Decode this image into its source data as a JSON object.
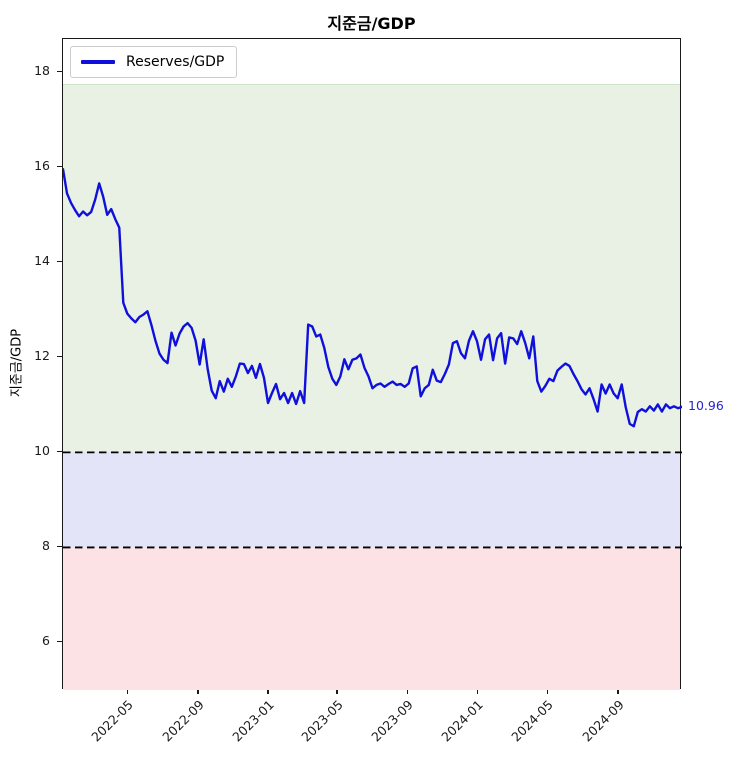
{
  "figure": {
    "background": "#ffffff"
  },
  "chart_data": {
    "type": "line",
    "title": "지준금/GDP",
    "ylabel": "지준금/GDP",
    "xlabel": "",
    "grid": false,
    "legend": {
      "label": "Reserves/GDP",
      "position": "upper left"
    },
    "ylim": [
      5.0,
      18.7
    ],
    "yticks": [
      6,
      8,
      10,
      12,
      14,
      16,
      18
    ],
    "xticklabels": [
      "2022-05",
      "2022-09",
      "2023-01",
      "2023-05",
      "2023-09",
      "2024-01",
      "2024-05",
      "2024-09"
    ],
    "bands": [
      {
        "name": "upper-green-zone",
        "from": 10,
        "to": 17.75,
        "color": "#e8f1e4",
        "edge_color": "#d2e3cc"
      },
      {
        "name": "mid-lavender-zone",
        "from": 8,
        "to": 10,
        "color": "#e4e4f8"
      },
      {
        "name": "lower-pink-zone",
        "from": 5.0,
        "to": 8,
        "color": "#fce2e5"
      }
    ],
    "hlines": [
      {
        "y": 10,
        "style": "dashed",
        "color": "#000000"
      },
      {
        "y": 8,
        "style": "dashed",
        "color": "#000000"
      }
    ],
    "series": [
      {
        "name": "Reserves/GDP",
        "color": "#1010dc",
        "x_start_date": "2022-01-07",
        "x_freq_days": 7,
        "values": [
          15.96,
          15.45,
          15.25,
          15.1,
          14.97,
          15.07,
          14.99,
          15.06,
          15.32,
          15.66,
          15.38,
          15.0,
          15.12,
          14.91,
          14.73,
          13.15,
          12.92,
          12.82,
          12.74,
          12.85,
          12.9,
          12.97,
          12.68,
          12.35,
          12.08,
          11.95,
          11.88,
          12.52,
          12.25,
          12.5,
          12.65,
          12.72,
          12.62,
          12.35,
          11.85,
          12.38,
          11.75,
          11.3,
          11.14,
          11.5,
          11.28,
          11.55,
          11.38,
          11.6,
          11.87,
          11.86,
          11.67,
          11.82,
          11.57,
          11.86,
          11.57,
          11.04,
          11.25,
          11.44,
          11.12,
          11.25,
          11.04,
          11.25,
          11.02,
          11.29,
          11.04,
          12.69,
          12.65,
          12.44,
          12.48,
          12.2,
          11.8,
          11.55,
          11.42,
          11.6,
          11.96,
          11.75,
          11.95,
          11.98,
          12.06,
          11.78,
          11.6,
          11.35,
          11.42,
          11.45,
          11.38,
          11.44,
          11.49,
          11.42,
          11.44,
          11.38,
          11.45,
          11.77,
          11.81,
          11.18,
          11.35,
          11.42,
          11.74,
          11.51,
          11.48,
          11.65,
          11.85,
          12.3,
          12.34,
          12.09,
          11.98,
          12.35,
          12.55,
          12.34,
          11.95,
          12.38,
          12.48,
          11.94,
          12.4,
          12.51,
          11.87,
          12.42,
          12.4,
          12.28,
          12.55,
          12.3,
          11.98,
          12.44,
          11.5,
          11.28,
          11.4,
          11.55,
          11.5,
          11.72,
          11.8,
          11.87,
          11.82,
          11.65,
          11.5,
          11.33,
          11.22,
          11.35,
          11.12,
          10.86,
          11.43,
          11.24,
          11.43,
          11.24,
          11.14,
          11.43,
          10.95,
          10.6,
          10.55,
          10.85,
          10.91,
          10.86,
          10.97,
          10.88,
          11.01,
          10.86,
          11.01,
          10.93,
          10.97,
          10.93,
          10.96
        ]
      }
    ],
    "annotation": {
      "text": "10.96",
      "value": 10.96,
      "color": "#2626cc"
    }
  }
}
